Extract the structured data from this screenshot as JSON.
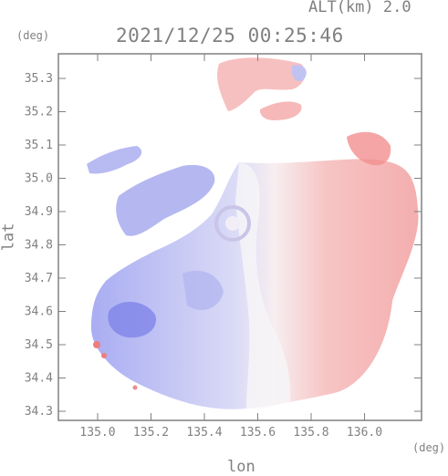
{
  "header": {
    "altitude_label": "ALT(km) 2.0",
    "timestamp": "2021/12/25 00:25:46"
  },
  "axes": {
    "x_title": "lon",
    "y_title": "lat",
    "x_unit": "(deg)",
    "y_unit": "(deg)",
    "x_ticks": [
      "135.0",
      "135.2",
      "135.4",
      "135.6",
      "135.8",
      "136.0"
    ],
    "y_ticks": [
      "35.3",
      "35.2",
      "35.1",
      "35.0",
      "34.9",
      "34.8",
      "34.7",
      "34.6",
      "34.5",
      "34.4",
      "34.3"
    ]
  },
  "colors": {
    "approaching": "#a8acf0",
    "receding": "#f6b4b4",
    "near_zero": "#f4f2f6",
    "axis": "#808080"
  }
}
